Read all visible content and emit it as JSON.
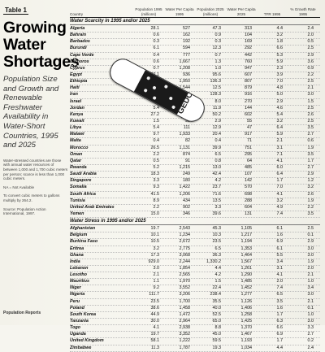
{
  "sidebar": {
    "table_label": "Table 1",
    "title_lines": [
      "Growing",
      "Water",
      "Shortages"
    ],
    "subtitle": "Population Size and Growth and Renewable Freshwater Availability in Water-Short Countries, 1995 and 2025",
    "notes": [
      "Water-stressed countries are those with annual water resources of between 1,000 and 1,700 cubic meters per person; scarce is less than 1,000 cubic meters.",
      "NA = Not Available",
      "To convert cubic meters to gallons multiply by 264.2.",
      "Source: Population Action International, 1997."
    ],
    "footer": "Population Reports"
  },
  "table": {
    "headers": [
      "Country",
      "Population 1995 (millions)",
      "Water Per Capita 1995",
      "Population 2025 (millions)",
      "Water Per Capita 2025",
      "TFR 1995",
      "% Growth Rate 1995"
    ],
    "sections": [
      {
        "title": "Water Scarcity in 1995 and/or 2025",
        "rows": [
          [
            "Algeria",
            "28.1",
            "527",
            "47.3",
            "313",
            "4.4",
            "2.4"
          ],
          [
            "Bahrain",
            "0.6",
            "162",
            "0.9",
            "104",
            "3.2",
            "2.0"
          ],
          [
            "Barbados",
            "0.3",
            "192",
            "0.3",
            "169",
            "1.8",
            "0.5"
          ],
          [
            "Burundi",
            "6.1",
            "594",
            "12.3",
            "292",
            "6.6",
            "2.5"
          ],
          [
            "Cape Verde",
            "0.4",
            "777",
            "0.7",
            "442",
            "5.3",
            "2.9"
          ],
          [
            "Comoros",
            "0.6",
            "1,667",
            "1.3",
            "760",
            "5.9",
            "3.6"
          ],
          [
            "Cyprus",
            "0.7",
            "1,208",
            "1.0",
            "947",
            "2.3",
            "0.9"
          ],
          [
            "Egypt",
            "62.1",
            "936",
            "95.6",
            "607",
            "3.9",
            "2.2"
          ],
          [
            "Ethiopia",
            "56.4",
            "1,950",
            "136.3",
            "807",
            "7.0",
            "2.5"
          ],
          [
            "Haiti",
            "7.1",
            "1,544",
            "12.5",
            "879",
            "4.8",
            "2.1"
          ],
          [
            "Iran",
            "68.4",
            "1,719",
            "128.3",
            "916",
            "5.0",
            "3.0"
          ],
          [
            "Israel",
            "5.5",
            "389",
            "8.0",
            "270",
            "2.9",
            "1.5"
          ],
          [
            "Jordan",
            "5.4",
            "318",
            "11.9",
            "144",
            "4.6",
            "2.5"
          ],
          [
            "Kenya",
            "27.2",
            "1,112",
            "50.2",
            "602",
            "5.4",
            "2.6"
          ],
          [
            "Kuwait",
            "1.5",
            "95",
            "2.9",
            "55",
            "3.2",
            "2.5"
          ],
          [
            "Libya",
            "5.4",
            "111",
            "12.9",
            "47",
            "6.4",
            "3.5"
          ],
          [
            "Malawi",
            "9.7",
            "1,933",
            "20.4",
            "917",
            "5.9",
            "2.7"
          ],
          [
            "Malta",
            "0.4",
            "82",
            "0.4",
            "71",
            "2.1",
            "0.6"
          ],
          [
            "Morocco",
            "26.5",
            "1,131",
            "39.9",
            "751",
            "3.1",
            "1.9"
          ],
          [
            "Oman",
            "2.2",
            "874",
            "6.5",
            "295",
            "7.1",
            "3.5"
          ],
          [
            "Qatar",
            "0.5",
            "91",
            "0.8",
            "64",
            "4.1",
            "1.7"
          ],
          [
            "Rwanda",
            "5.2",
            "1,215",
            "13.0",
            "485",
            "6.0",
            "2.7"
          ],
          [
            "Saudi Arabia",
            "18.3",
            "249",
            "42.4",
            "107",
            "6.4",
            "2.9"
          ],
          [
            "Singapore",
            "3.3",
            "180",
            "4.2",
            "142",
            "1.7",
            "1.2"
          ],
          [
            "Somalia",
            "9.3",
            "1,422",
            "23.7",
            "570",
            "7.0",
            "3.2"
          ],
          [
            "South Africa",
            "41.5",
            "1,206",
            "71.6",
            "698",
            "4.1",
            "2.6"
          ],
          [
            "Tunisia",
            "8.9",
            "434",
            "13.5",
            "288",
            "3.2",
            "1.9"
          ],
          [
            "United Arab Emirates",
            "2.2",
            "902",
            "3.3",
            "604",
            "4.9",
            "2.2"
          ],
          [
            "Yemen",
            "15.0",
            "346",
            "39.6",
            "131",
            "7.4",
            "3.5"
          ]
        ]
      },
      {
        "title": "Water Stress in 1995 and/or 2025",
        "rows": [
          [
            "Afghanistan",
            "19.7",
            "2,543",
            "45.3",
            "1,105",
            "6.1",
            "2.5"
          ],
          [
            "Belgium",
            "10.1",
            "1,234",
            "10.3",
            "1,217",
            "1.6",
            "0.1"
          ],
          [
            "Burkina Faso",
            "10.5",
            "2,672",
            "23.5",
            "1,194",
            "6.9",
            "2.9"
          ],
          [
            "Eritrea",
            "3.2",
            "2,775",
            "6.5",
            "1,353",
            "6.1",
            "3.0"
          ],
          [
            "Ghana",
            "17.3",
            "3,068",
            "36.3",
            "1,464",
            "5.5",
            "3.0"
          ],
          [
            "India",
            "929.0",
            "2,244",
            "1,330.2",
            "1,567",
            "3.4",
            "1.9"
          ],
          [
            "Lebanon",
            "3.0",
            "1,854",
            "4.4",
            "1,261",
            "3.1",
            "2.0"
          ],
          [
            "Lesotho",
            "2.1",
            "2,565",
            "4.2",
            "1,290",
            "4.1",
            "2.1"
          ],
          [
            "Mauritius",
            "1.1",
            "1,970",
            "1.5",
            "1,485",
            "2.0",
            "1.0"
          ],
          [
            "Niger",
            "9.2",
            "3,552",
            "22.4",
            "1,452",
            "7.4",
            "3.4"
          ],
          [
            "Nigeria",
            "111.7",
            "3,206",
            "238.4",
            "1,277",
            "6.5",
            "3.0"
          ],
          [
            "Peru",
            "23.5",
            "1,700",
            "35.5",
            "1,126",
            "3.5",
            "2.1"
          ],
          [
            "Poland",
            "38.6",
            "1,458",
            "40.0",
            "1,406",
            "1.6",
            "0.1"
          ],
          [
            "South Korea",
            "44.9",
            "1,472",
            "52.5",
            "1,258",
            "1.7",
            "1.0"
          ],
          [
            "Tanzania",
            "30.0",
            "2,964",
            "65.0",
            "1,425",
            "6.3",
            "3.0"
          ],
          [
            "Togo",
            "4.1",
            "2,938",
            "8.8",
            "1,370",
            "6.6",
            "3.3"
          ],
          [
            "Uganda",
            "19.7",
            "3,352",
            "45.0",
            "1,467",
            "6.9",
            "2.7"
          ],
          [
            "United Kingdom",
            "58.1",
            "1,222",
            "59.5",
            "1,193",
            "1.7",
            "0.2"
          ],
          [
            "Zimbabwe",
            "11.3",
            "1,787",
            "19.3",
            "1,034",
            "4.4",
            "2.4"
          ]
        ]
      }
    ]
  },
  "wristband": {
    "brand": "GEDO",
    "colors": {
      "band": "#ffffff",
      "pattern": "#1a1a1a",
      "outline": "#333333"
    }
  }
}
